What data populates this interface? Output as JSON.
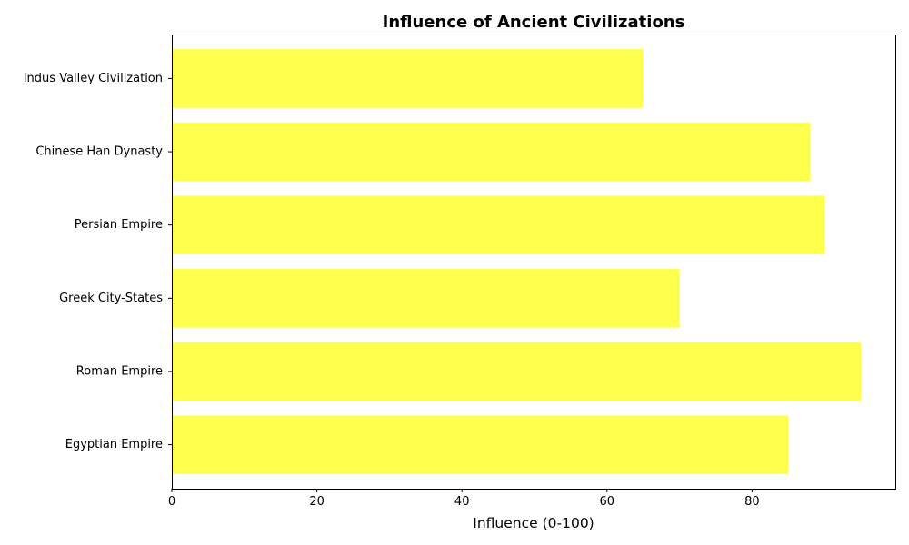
{
  "chart_data": {
    "type": "bar",
    "orientation": "horizontal",
    "title": "Influence of Ancient Civilizations",
    "xlabel": "Influence (0-100)",
    "ylabel": "",
    "categories": [
      "Egyptian Empire",
      "Roman Empire",
      "Greek City-States",
      "Persian Empire",
      "Chinese Han Dynasty",
      "Indus Valley Civilization"
    ],
    "values": [
      85,
      95,
      70,
      90,
      88,
      65
    ],
    "xlim": [
      0,
      100
    ],
    "xticks": [
      0,
      20,
      40,
      60,
      80
    ],
    "bar_color": "#ffff4d",
    "grid": false,
    "legend": "none"
  }
}
